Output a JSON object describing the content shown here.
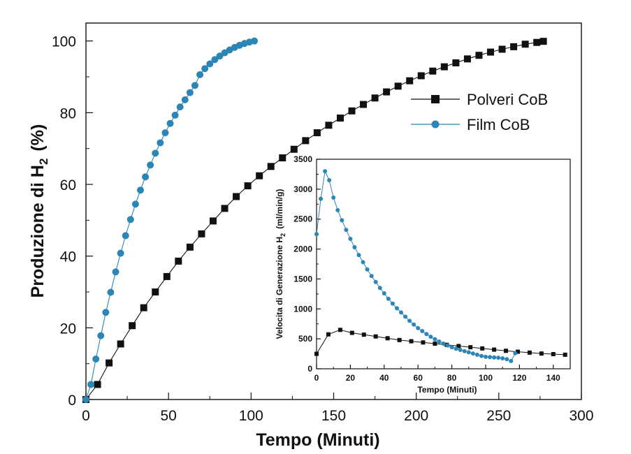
{
  "chart_data": [
    {
      "type": "line",
      "xlabel": "Tempo (Minuti)",
      "ylabel": "Produzione di H",
      "ylabel_sub": "2",
      "ylabel_unit": "(%)",
      "xlim": [
        0,
        300
      ],
      "ylim": [
        0,
        105
      ],
      "xticks": [
        "0",
        "50",
        "100",
        "150",
        "200",
        "250",
        "300"
      ],
      "yticks": [
        "0",
        "20",
        "40",
        "60",
        "80",
        "100"
      ],
      "legend_position": "upper-right",
      "grid": false,
      "series": [
        {
          "name": "Polveri CoB",
          "color": "#111111",
          "marker": "square",
          "x": [
            0,
            7,
            14,
            21,
            28,
            35,
            42,
            49,
            56,
            63,
            70,
            77,
            84,
            91,
            98,
            105,
            112,
            119,
            126,
            133,
            140,
            147,
            154,
            161,
            168,
            175,
            182,
            189,
            196,
            203,
            210,
            217,
            224,
            231,
            238,
            245,
            252,
            259,
            266,
            273,
            277
          ],
          "y": [
            0,
            4.2,
            10.2,
            15.5,
            20.6,
            25.6,
            30.0,
            34.3,
            38.6,
            42.5,
            46.2,
            49.8,
            53.3,
            56.6,
            59.6,
            62.4,
            65.0,
            67.4,
            69.8,
            72.2,
            74.4,
            76.5,
            78.5,
            80.5,
            82.3,
            84.1,
            85.8,
            87.4,
            88.9,
            90.3,
            91.6,
            92.8,
            93.9,
            95.0,
            96.0,
            96.9,
            97.7,
            98.4,
            99.1,
            99.6,
            99.9
          ]
        },
        {
          "name": "Film CoB",
          "color": "#2b85b5",
          "marker": "circle",
          "x": [
            0,
            3,
            6,
            9,
            12,
            15,
            18,
            21,
            24,
            27,
            30,
            33,
            36,
            39,
            42,
            45,
            48,
            51,
            54,
            57,
            60,
            63,
            66,
            69,
            72,
            75,
            78,
            81,
            84,
            87,
            90,
            93,
            96,
            99,
            102
          ],
          "y": [
            0,
            4.2,
            11.3,
            17.8,
            24.3,
            29.9,
            35.6,
            40.8,
            45.7,
            50.2,
            54.5,
            58.4,
            62.1,
            65.4,
            68.7,
            71.6,
            74.4,
            77.0,
            79.3,
            81.6,
            83.6,
            85.6,
            87.6,
            90.6,
            92.3,
            93.6,
            94.8,
            95.8,
            96.7,
            97.5,
            98.2,
            98.8,
            99.3,
            99.7,
            100
          ]
        }
      ]
    },
    {
      "type": "line",
      "xlabel": "Tempo (Minuti)",
      "ylabel": "Velocita di Generazione H",
      "ylabel_sub": "2",
      "ylabel_unit": "(ml/min/g)",
      "xlim": [
        0,
        150
      ],
      "ylim": [
        0,
        3500
      ],
      "xticks": [
        "0",
        "20",
        "40",
        "60",
        "80",
        "100",
        "120",
        "140"
      ],
      "yticks": [
        "0",
        "500",
        "1000",
        "1500",
        "2000",
        "2500",
        "3000",
        "3500"
      ],
      "grid": false,
      "series": [
        {
          "color": "#111111",
          "marker": "square",
          "x": [
            0,
            7,
            14,
            21,
            28,
            35,
            42,
            49,
            56,
            63,
            70,
            77,
            84,
            91,
            98,
            105,
            112,
            119,
            126,
            133,
            140,
            147
          ],
          "y": [
            250,
            575,
            650,
            600,
            570,
            540,
            510,
            480,
            460,
            440,
            420,
            400,
            380,
            360,
            340,
            320,
            300,
            285,
            270,
            255,
            245,
            235
          ]
        },
        {
          "color": "#2b85b5",
          "marker": "circle",
          "x": [
            0,
            2.5,
            5,
            7.5,
            10,
            12.5,
            15,
            17.5,
            20,
            22.5,
            25,
            27.5,
            30,
            32.5,
            35,
            37.5,
            40,
            42.5,
            45,
            47.5,
            50,
            52.5,
            55,
            57.5,
            60,
            62.5,
            65,
            67.5,
            70,
            72.5,
            75,
            77.5,
            80,
            82.5,
            85,
            87.5,
            90,
            92.5,
            95,
            97.5,
            100,
            102.5,
            105,
            107.5,
            110,
            112.5,
            115,
            117.5
          ],
          "y": [
            2250,
            2840,
            3300,
            3150,
            2860,
            2650,
            2480,
            2320,
            2170,
            2030,
            1900,
            1780,
            1660,
            1550,
            1450,
            1350,
            1260,
            1170,
            1090,
            1010,
            940,
            870,
            800,
            740,
            680,
            630,
            580,
            535,
            495,
            455,
            420,
            390,
            360,
            335,
            315,
            295,
            275,
            255,
            235,
            215,
            200,
            195,
            190,
            185,
            175,
            160,
            130,
            260
          ]
        }
      ]
    }
  ]
}
